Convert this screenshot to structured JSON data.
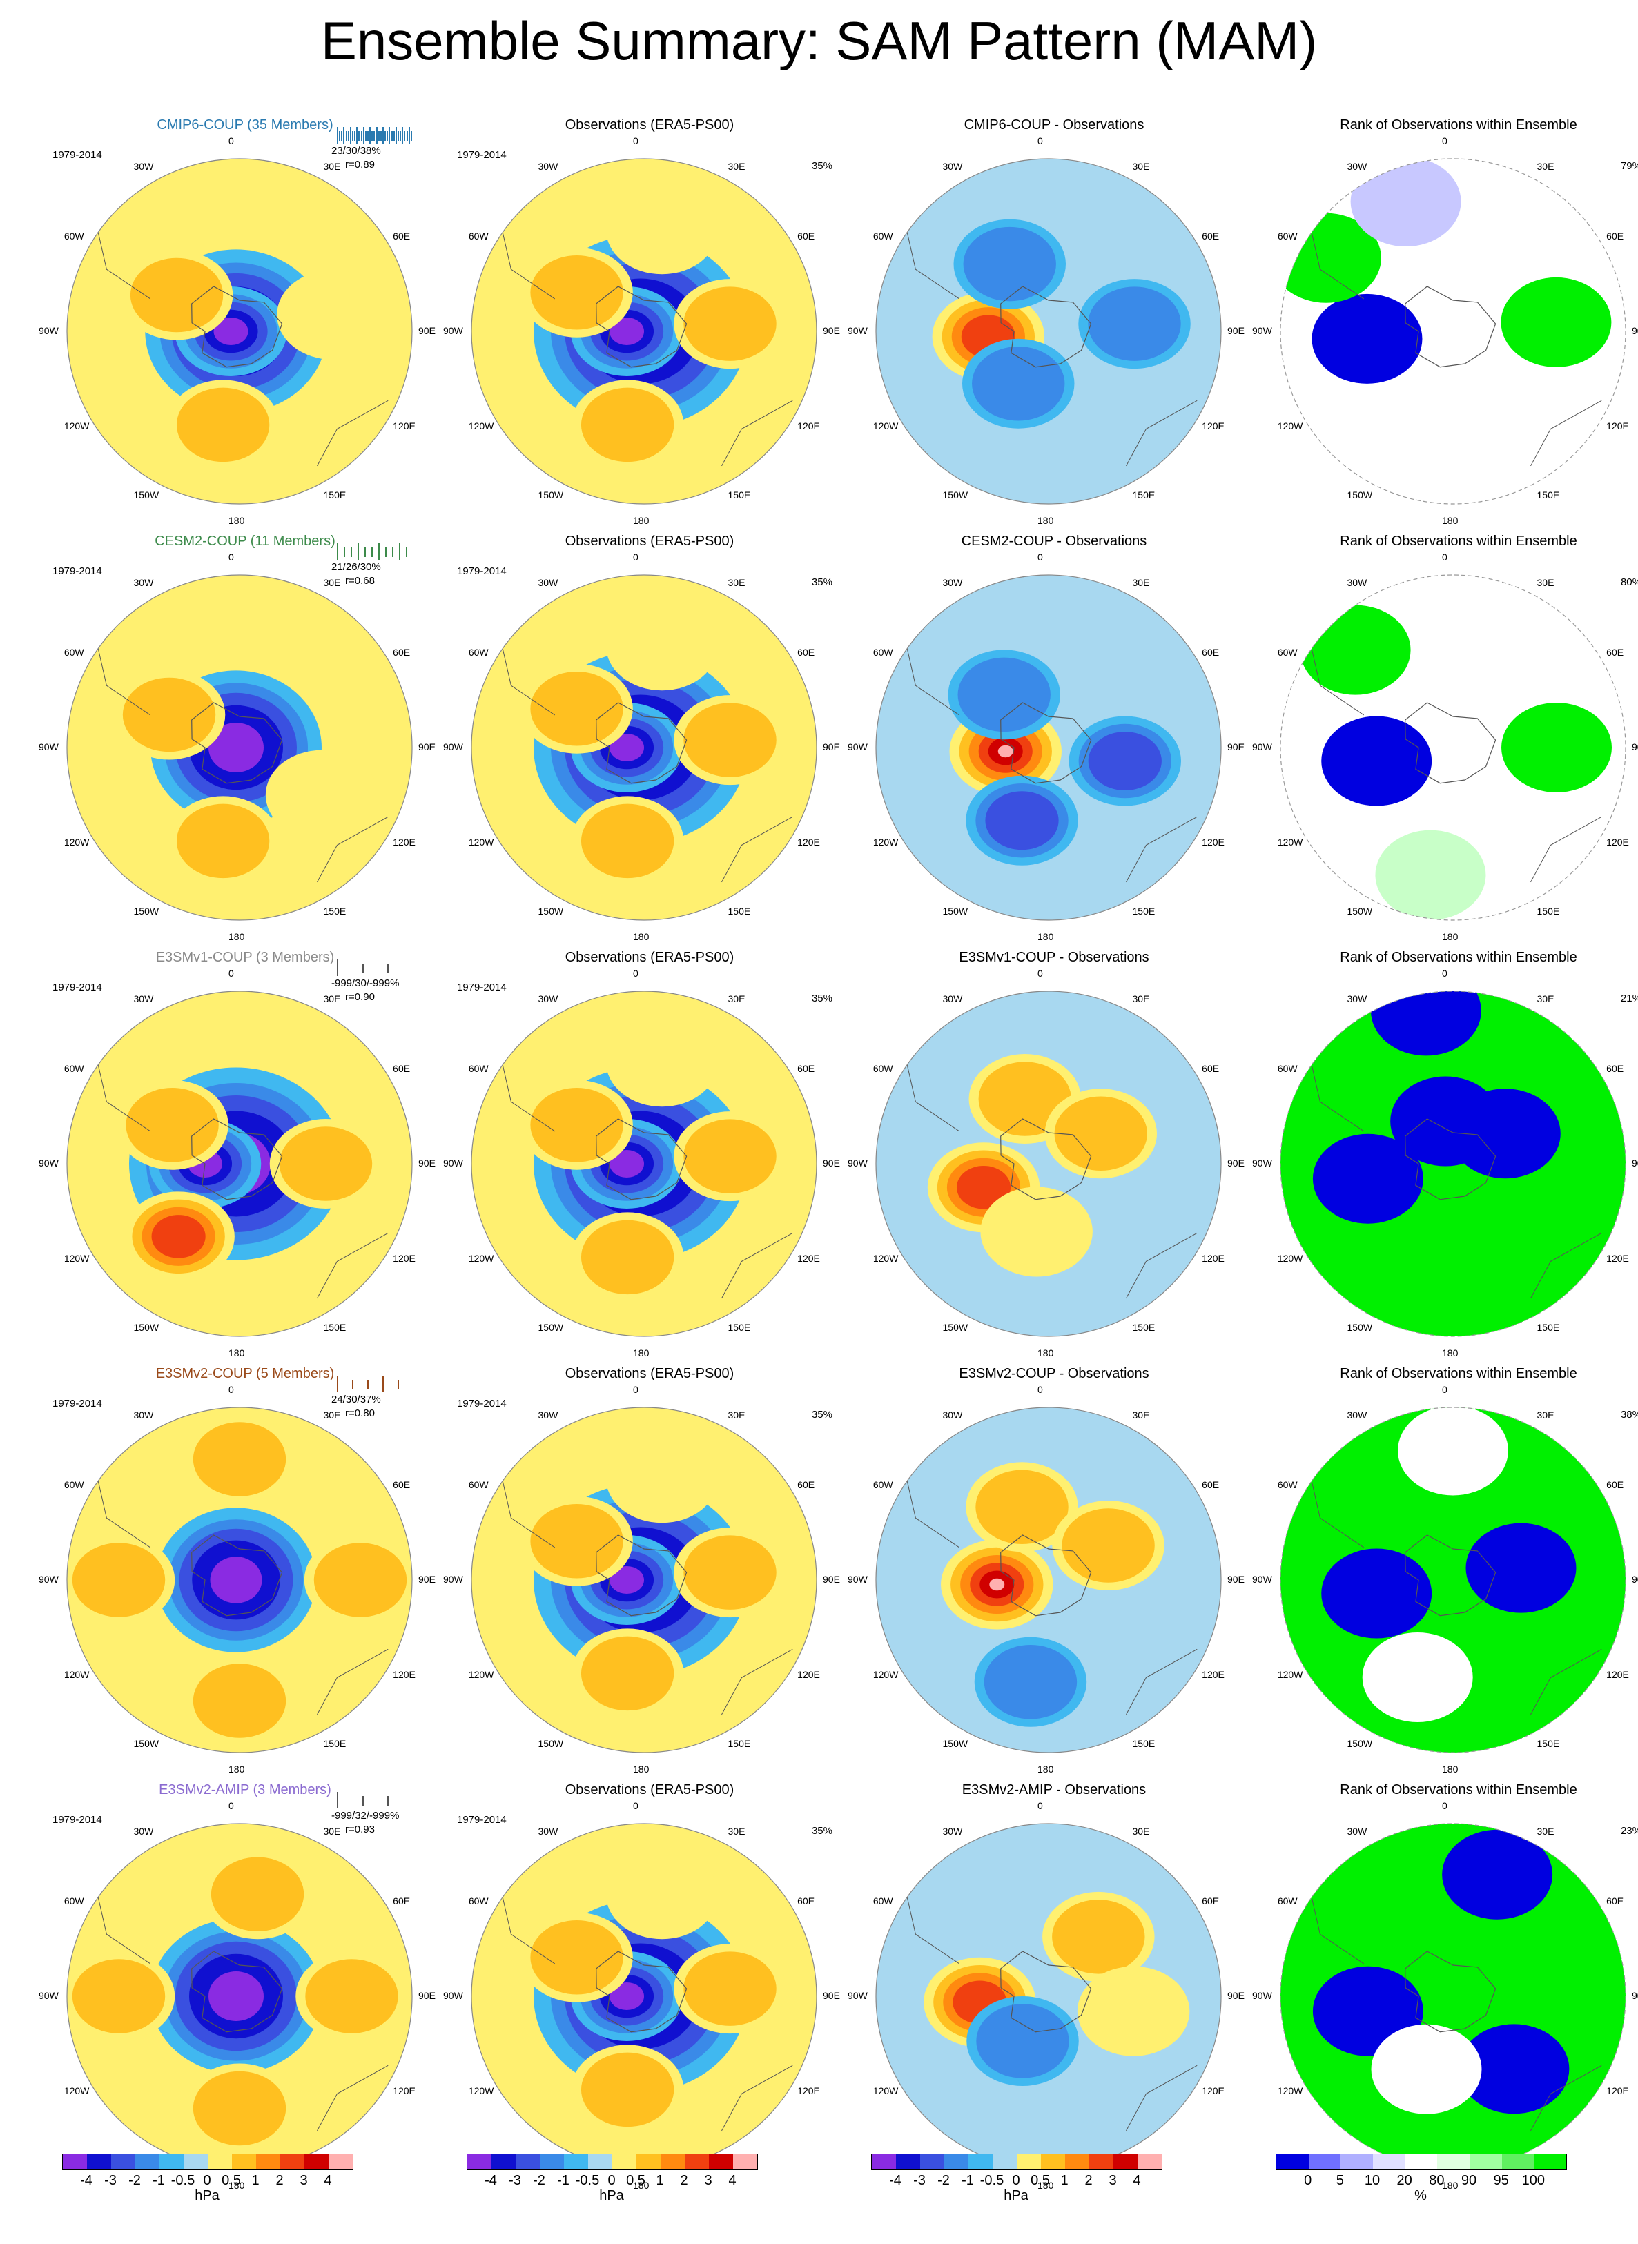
{
  "page_title": "Ensemble Summary: SAM Pattern (MAM)",
  "lon_labels": [
    "0",
    "30E",
    "60E",
    "90E",
    "120E",
    "150E",
    "180",
    "150W",
    "120W",
    "90W",
    "60W",
    "30W"
  ],
  "chart_data": {
    "type": "heatmap",
    "projection": "south-polar-stereographic",
    "rows": [
      {
        "model": {
          "title": "CMIP6-COUP (35 Members)",
          "title_color": "#2a7ab0",
          "period": "1979-2014",
          "stats": "23/30/38%",
          "r": "r=0.89",
          "strip_color": "#2a7ab0",
          "strip_count": 35,
          "blobs": [
            {
              "lon": -90,
              "r": 0.05,
              "level": -4
            },
            {
              "lon": -60,
              "r": 0.42,
              "level": 1
            },
            {
              "lon": -170,
              "r": 0.55,
              "level": 1
            },
            {
              "lon": 80,
              "r": 0.55,
              "level": 0.5
            }
          ],
          "low_scale": 0.85
        },
        "obs": {
          "title": "Observations (ERA5-PS00)",
          "period": "1979-2014",
          "pct": "35%"
        },
        "diff": {
          "title": "CMIP6-COUP - Observations",
          "blobs": [
            {
              "lon": -95,
              "r": 0.35,
              "level": 3.5
            },
            {
              "lon": -30,
              "r": 0.45,
              "level": -1
            },
            {
              "lon": 85,
              "r": 0.5,
              "level": -1.5
            },
            {
              "lon": -150,
              "r": 0.35,
              "level": -1
            }
          ]
        },
        "rank": {
          "title": "Rank of Observations within Ensemble",
          "pct": "79%",
          "bg": "white",
          "blobs": [
            {
              "lon": -95,
              "r": 0.5,
              "cat": "blue"
            },
            {
              "lon": -60,
              "r": 0.85,
              "cat": "green"
            },
            {
              "lon": 85,
              "r": 0.6,
              "cat": "green"
            },
            {
              "lon": -20,
              "r": 0.8,
              "cat": "lavender"
            }
          ]
        }
      },
      {
        "model": {
          "title": "CESM2-COUP (11 Members)",
          "title_color": "#3c8a4a",
          "period": "1979-2014",
          "stats": "21/26/30%",
          "r": "r=0.68",
          "strip_color": "#3c8a4a",
          "strip_count": 11,
          "blobs": [
            {
              "lon": -65,
              "r": 0.45,
              "level": 1
            },
            {
              "lon": -170,
              "r": 0.55,
              "level": 1
            },
            {
              "lon": 120,
              "r": 0.55,
              "level": 0.5
            }
          ],
          "low_scale": 0.8
        },
        "obs": {
          "title": "Observations (ERA5-PS00)",
          "period": "1979-2014",
          "pct": "35%"
        },
        "diff": {
          "title": "CESM2-COUP - Observations",
          "blobs": [
            {
              "lon": -95,
              "r": 0.25,
              "level": 5
            },
            {
              "lon": -40,
              "r": 0.4,
              "level": -1.5
            },
            {
              "lon": 100,
              "r": 0.45,
              "level": -2
            },
            {
              "lon": -160,
              "r": 0.45,
              "level": -2
            }
          ]
        },
        "rank": {
          "title": "Rank of Observations within Ensemble",
          "pct": "80%",
          "bg": "white",
          "blobs": [
            {
              "lon": -100,
              "r": 0.45,
              "cat": "blue"
            },
            {
              "lon": -45,
              "r": 0.8,
              "cat": "green"
            },
            {
              "lon": 90,
              "r": 0.6,
              "cat": "green"
            },
            {
              "lon": -170,
              "r": 0.75,
              "cat": "lightgreen"
            }
          ]
        }
      },
      {
        "model": {
          "title": "E3SMv1-COUP (3 Members)",
          "title_color": "#8a8a8a",
          "period": "1979-2014",
          "stats": "-999/30/-999%",
          "r": "r=0.90",
          "strip_color": "#555555",
          "strip_count": 3,
          "blobs": [
            {
              "lon": -90,
              "r": 0.2,
              "level": -4
            },
            {
              "lon": -60,
              "r": 0.45,
              "level": 1.5
            },
            {
              "lon": -140,
              "r": 0.55,
              "level": 3
            },
            {
              "lon": 90,
              "r": 0.5,
              "level": 1
            }
          ],
          "low_scale": 1.0
        },
        "obs": {
          "title": "Observations (ERA5-PS00)",
          "period": "1979-2014",
          "pct": "35%"
        },
        "diff": {
          "title": "E3SMv1-COUP - Observations",
          "blobs": [
            {
              "lon": -110,
              "r": 0.4,
              "level": 3
            },
            {
              "lon": -20,
              "r": 0.4,
              "level": 1
            },
            {
              "lon": 60,
              "r": 0.35,
              "level": 1
            },
            {
              "lon": -170,
              "r": 0.4,
              "level": 0.5
            }
          ]
        },
        "rank": {
          "title": "Rank of Observations within Ensemble",
          "pct": "21%",
          "bg": "green",
          "blobs": [
            {
              "lon": -100,
              "r": 0.5,
              "cat": "blue"
            },
            {
              "lon": -10,
              "r": 0.25,
              "cat": "blue"
            },
            {
              "lon": 60,
              "r": 0.35,
              "cat": "blue"
            },
            {
              "lon": -10,
              "r": 0.9,
              "cat": "blue"
            }
          ]
        }
      },
      {
        "model": {
          "title": "E3SMv2-COUP (5 Members)",
          "title_color": "#9a4a1a",
          "period": "1979-2014",
          "stats": "24/30/37%",
          "r": "r=0.80",
          "strip_color": "#9a4a1a",
          "strip_count": 5,
          "blobs": [
            {
              "lon": -90,
              "r": 0.7,
              "level": 1.5
            },
            {
              "lon": 90,
              "r": 0.7,
              "level": 1.5
            },
            {
              "lon": 0,
              "r": 0.7,
              "level": 1
            },
            {
              "lon": 180,
              "r": 0.7,
              "level": 1.5
            }
          ],
          "low_scale": 0.75
        },
        "obs": {
          "title": "Observations (ERA5-PS00)",
          "period": "1979-2014",
          "pct": "35%"
        },
        "diff": {
          "title": "E3SMv2-COUP - Observations",
          "blobs": [
            {
              "lon": -95,
              "r": 0.3,
              "level": 5
            },
            {
              "lon": -20,
              "r": 0.45,
              "level": 1
            },
            {
              "lon": 60,
              "r": 0.4,
              "level": 1
            },
            {
              "lon": -170,
              "r": 0.6,
              "level": -1
            }
          ]
        },
        "rank": {
          "title": "Rank of Observations within Ensemble",
          "pct": "38%",
          "bg": "green",
          "blobs": [
            {
              "lon": -100,
              "r": 0.45,
              "cat": "blue"
            },
            {
              "lon": 0,
              "r": 0.75,
              "cat": "white"
            },
            {
              "lon": 80,
              "r": 0.4,
              "cat": "blue"
            },
            {
              "lon": -160,
              "r": 0.6,
              "cat": "white"
            }
          ]
        }
      },
      {
        "model": {
          "title": "E3SMv2-AMIP (3 Members)",
          "title_color": "#8a6ad0",
          "period": "1979-2014",
          "stats": "-999/32/-999%",
          "r": "r=0.93",
          "strip_color": "#555555",
          "strip_count": 3,
          "blobs": [
            {
              "lon": -90,
              "r": 0.7,
              "level": 1.5
            },
            {
              "lon": 90,
              "r": 0.65,
              "level": 1.5
            },
            {
              "lon": 10,
              "r": 0.6,
              "level": 1
            },
            {
              "lon": 180,
              "r": 0.65,
              "level": 1.5
            }
          ],
          "low_scale": 0.8
        },
        "obs": {
          "title": "Observations (ERA5-PS00)",
          "period": "1979-2014",
          "pct": "35%"
        },
        "diff": {
          "title": "E3SMv2-AMIP - Observations",
          "blobs": [
            {
              "lon": -95,
              "r": 0.4,
              "level": 3
            },
            {
              "lon": 40,
              "r": 0.45,
              "level": 1
            },
            {
              "lon": 100,
              "r": 0.5,
              "level": 0.5
            },
            {
              "lon": -150,
              "r": 0.3,
              "level": -1
            }
          ]
        },
        "rank": {
          "title": "Rank of Observations within Ensemble",
          "pct": "23%",
          "bg": "green",
          "blobs": [
            {
              "lon": -100,
              "r": 0.5,
              "cat": "blue"
            },
            {
              "lon": 20,
              "r": 0.75,
              "cat": "blue"
            },
            {
              "lon": 140,
              "r": 0.55,
              "cat": "blue"
            },
            {
              "lon": -160,
              "r": 0.45,
              "cat": "white"
            }
          ]
        }
      }
    ],
    "obs_blobs": [
      {
        "lon": -90,
        "r": 0.1,
        "level": -4
      },
      {
        "lon": -60,
        "r": 0.45,
        "level": 1.5
      },
      {
        "lon": -170,
        "r": 0.55,
        "level": 1.5
      },
      {
        "lon": 85,
        "r": 0.5,
        "level": 1.5
      },
      {
        "lon": 10,
        "r": 0.6,
        "level": 0.5
      }
    ],
    "colorbar_levels": [
      "-4",
      "-3",
      "-2",
      "-1",
      "-0.5",
      "0",
      "0.5",
      "1",
      "2",
      "3",
      "4"
    ],
    "colorbar_colors": [
      "#8a2be2",
      "#1010d0",
      "#3a50e0",
      "#3a8ae8",
      "#40b8f0",
      "#a8d8f0",
      "#fff070",
      "#ffc020",
      "#ff8a10",
      "#f04010",
      "#d00000",
      "#ffb0b0"
    ],
    "colorbar_unit": "hPa",
    "rank_levels": [
      "0",
      "5",
      "10",
      "20",
      "80",
      "90",
      "95",
      "100"
    ],
    "rank_colors": [
      "#0000e0",
      "#7070ff",
      "#b0b0ff",
      "#e0e0ff",
      "#ffffff",
      "#e0ffe0",
      "#a0ffa0",
      "#60f060",
      "#00f000"
    ],
    "rank_unit": "%"
  }
}
